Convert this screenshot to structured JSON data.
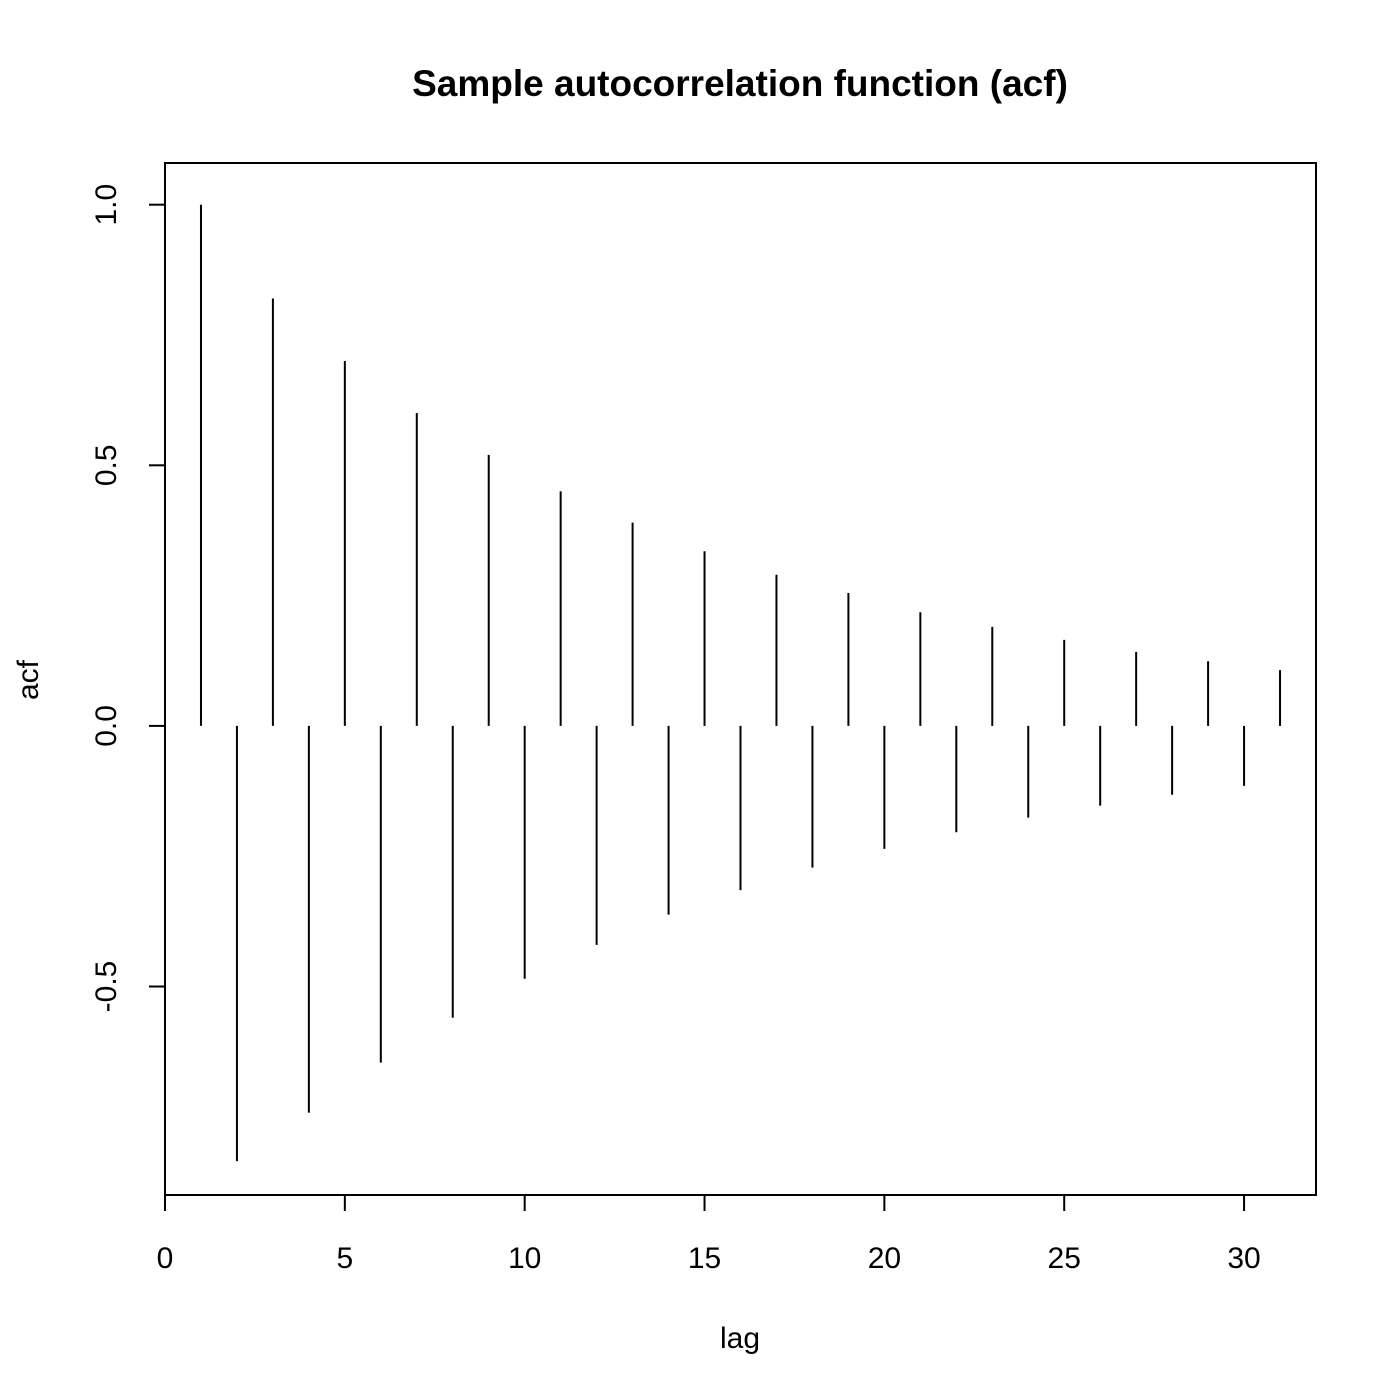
{
  "chart_data": {
    "type": "bar",
    "style": "vertical-spikes",
    "title": "Sample autocorrelation function (acf)",
    "xlabel": "lag",
    "ylabel": "acf",
    "xlim": [
      0,
      32
    ],
    "ylim": [
      -0.9,
      1.08
    ],
    "x_ticks": [
      0,
      5,
      10,
      15,
      20,
      25,
      30
    ],
    "x_tick_labels": [
      "0",
      "5",
      "10",
      "15",
      "20",
      "25",
      "30"
    ],
    "y_ticks": [
      -0.5,
      0.0,
      0.5,
      1.0
    ],
    "y_tick_labels": [
      "-0.5",
      "0.0",
      "0.5",
      "1.0"
    ],
    "grid": false,
    "legend": "none",
    "line_color": "#000000",
    "series": [
      {
        "x": [
          1,
          2,
          3,
          4,
          5,
          6,
          7,
          8,
          9,
          10,
          11,
          12,
          13,
          14,
          15,
          16,
          17,
          18,
          19,
          20,
          21,
          22,
          23,
          24,
          25,
          26,
          27,
          28,
          29,
          30,
          31
        ],
        "values": [
          1.0,
          -0.835,
          0.82,
          -0.742,
          0.7,
          -0.646,
          0.6,
          -0.56,
          0.52,
          -0.485,
          0.45,
          -0.42,
          0.39,
          -0.362,
          0.335,
          -0.315,
          0.29,
          -0.272,
          0.255,
          -0.236,
          0.218,
          -0.204,
          0.19,
          -0.176,
          0.165,
          -0.153,
          0.142,
          -0.132,
          0.124,
          -0.115,
          0.107
        ]
      }
    ]
  }
}
